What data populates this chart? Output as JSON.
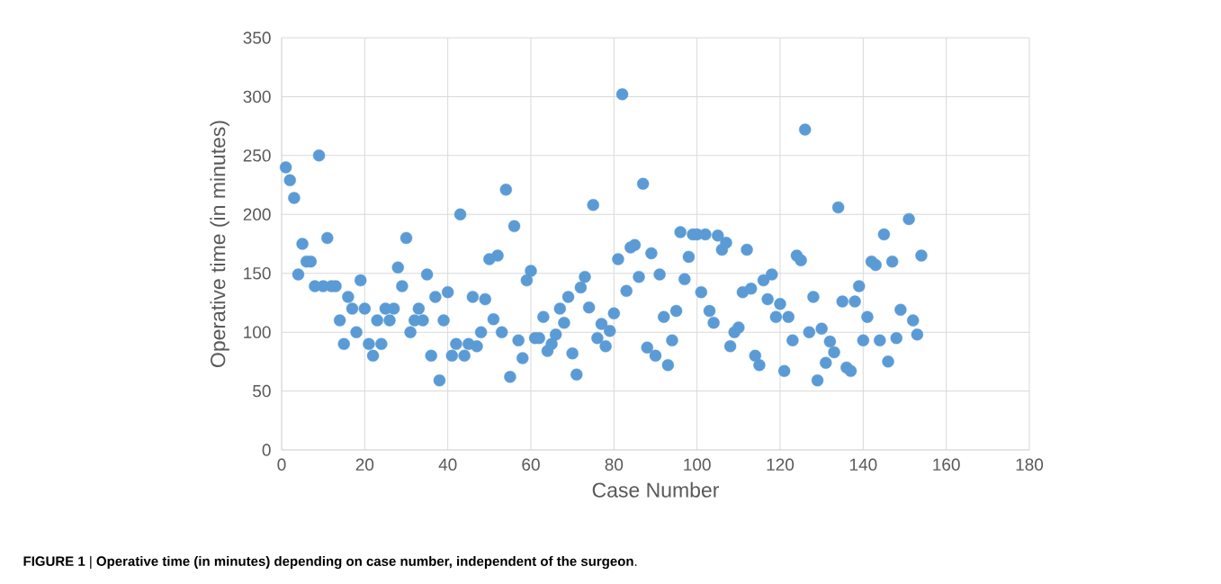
{
  "chart_data": {
    "type": "scatter",
    "xlabel": "Case Number",
    "ylabel": "Operative time (in minutes)",
    "annotations": [
      "**FIGURE 1** | **Operative time (in minutes) depending on case number, independent of the surgeon**."
    ],
    "xlim": [
      0,
      180
    ],
    "xticks": [
      0,
      20,
      40,
      60,
      80,
      100,
      120,
      140,
      160,
      180
    ],
    "ylim": [
      0,
      350
    ],
    "yticks": [
      0,
      50,
      100,
      150,
      200,
      250,
      300,
      350
    ],
    "grid": true,
    "marker": "circle",
    "series": [
      {
        "color": "#5b9bd5",
        "x": [
          1,
          2,
          3,
          4,
          5,
          6,
          7,
          8,
          9,
          10,
          11,
          12,
          13,
          14,
          15,
          16,
          17,
          18,
          19,
          20,
          21,
          22,
          23,
          24,
          25,
          26,
          27,
          28,
          29,
          30,
          31,
          32,
          33,
          34,
          35,
          36,
          37,
          38,
          39,
          40,
          41,
          42,
          43,
          44,
          45,
          46,
          47,
          48,
          49,
          50,
          51,
          52,
          53,
          54,
          55,
          56,
          57,
          58,
          59,
          60,
          61,
          62,
          63,
          64,
          65,
          66,
          67,
          68,
          69,
          70,
          71,
          72,
          73,
          74,
          75,
          76,
          77,
          78,
          79,
          80,
          81,
          82,
          83,
          84,
          85,
          86,
          87,
          88,
          89,
          90,
          91,
          92,
          93,
          94,
          95,
          96,
          97,
          98,
          99,
          100,
          101,
          102,
          103,
          104,
          105,
          106,
          107,
          108,
          109,
          110,
          111,
          112,
          113,
          114,
          115,
          116,
          117,
          118,
          119,
          120,
          121,
          122,
          123,
          124,
          125,
          126,
          127,
          128,
          129,
          130,
          131,
          132,
          133,
          134,
          135,
          136,
          137,
          138,
          139,
          140,
          141,
          142,
          143,
          144,
          145,
          146,
          147,
          148,
          149,
          151,
          152,
          153,
          154
        ],
        "values": [
          240,
          229,
          214,
          149,
          175,
          160,
          160,
          139,
          250,
          139,
          180,
          139,
          139,
          110,
          90,
          130,
          120,
          100,
          144,
          120,
          90,
          80,
          110,
          90,
          120,
          110,
          120,
          155,
          139,
          180,
          100,
          110,
          120,
          110,
          149,
          80,
          130,
          59,
          110,
          134,
          80,
          90,
          200,
          80,
          90,
          130,
          88,
          100,
          128,
          162,
          111,
          165,
          100,
          221,
          62,
          190,
          93,
          78,
          144,
          152,
          95,
          95,
          113,
          84,
          90,
          98,
          120,
          108,
          130,
          82,
          64,
          138,
          147,
          121,
          208,
          95,
          107,
          88,
          101,
          116,
          162,
          302,
          135,
          172,
          174,
          147,
          226,
          87,
          167,
          80,
          149,
          113,
          72,
          93,
          118,
          185,
          145,
          164,
          183,
          183,
          134,
          183,
          118,
          108,
          182,
          170,
          176,
          88,
          100,
          104,
          134,
          170,
          137,
          80,
          72,
          144,
          128,
          149,
          113,
          124,
          67,
          113,
          93,
          165,
          161,
          272,
          100,
          130,
          59,
          103,
          74,
          92,
          83,
          206,
          126,
          70,
          67,
          126,
          139,
          93,
          113,
          160,
          157,
          93,
          183,
          75,
          160,
          95,
          119,
          196,
          110,
          98,
          165
        ]
      }
    ]
  }
}
